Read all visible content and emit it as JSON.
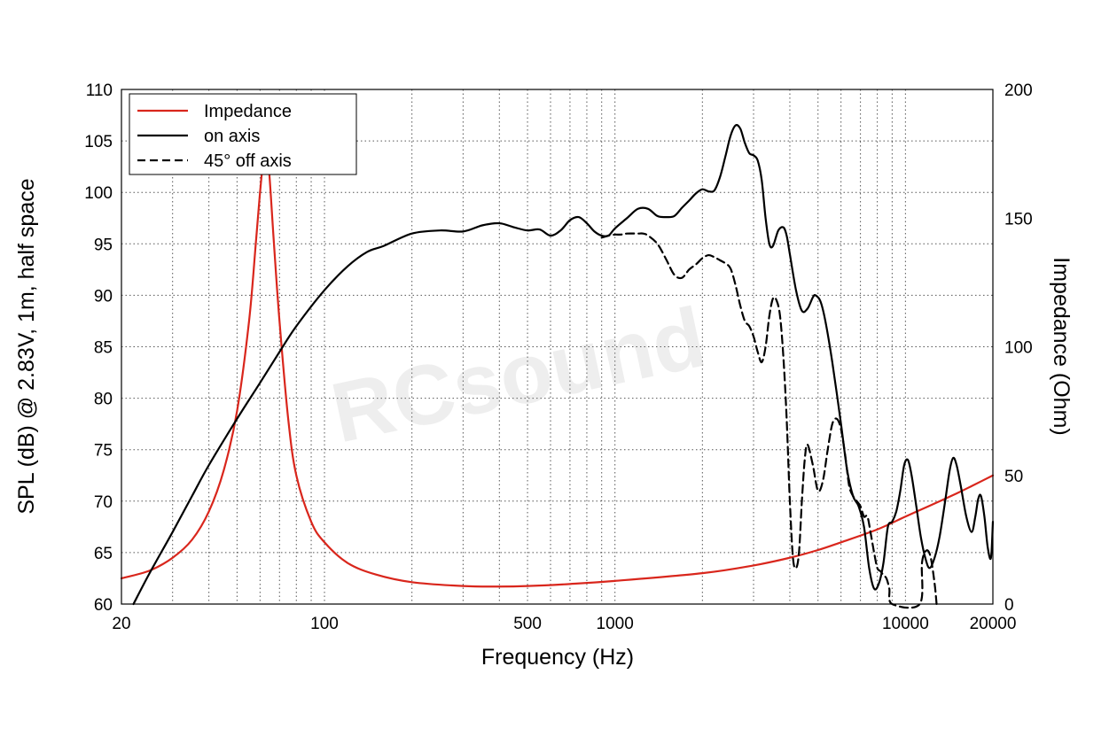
{
  "chart_data": {
    "type": "line",
    "title": "",
    "xlabel": "Frequency (Hz)",
    "ylabel": "SPL (dB) @ 2.83V, 1m, half space",
    "y2label": "Impedance (Ohm)",
    "x_scale": "log",
    "xlim": [
      20,
      20000
    ],
    "ylim": [
      60,
      110
    ],
    "y2lim": [
      0,
      200
    ],
    "grid": true,
    "legend_position": "top-left",
    "x_tick_labels": [
      "20",
      "100",
      "500",
      "1000",
      "10000",
      "20000"
    ],
    "x_tick_values": [
      20,
      100,
      500,
      1000,
      10000,
      20000
    ],
    "y_tick_labels": [
      "60",
      "65",
      "70",
      "75",
      "80",
      "85",
      "90",
      "95",
      "100",
      "105",
      "110"
    ],
    "y2_tick_labels": [
      "0",
      "50",
      "100",
      "150",
      "200"
    ],
    "watermark": "RCsound",
    "series": [
      {
        "name": "Impedance",
        "axis": "right",
        "color": "#d9261c",
        "dash": "solid",
        "points": [
          [
            20,
            10
          ],
          [
            25,
            13
          ],
          [
            30,
            18
          ],
          [
            35,
            25
          ],
          [
            40,
            36
          ],
          [
            45,
            52
          ],
          [
            50,
            75
          ],
          [
            55,
            110
          ],
          [
            58,
            140
          ],
          [
            60,
            160
          ],
          [
            62,
            176
          ],
          [
            63,
            177
          ],
          [
            64.5,
            168
          ],
          [
            67,
            140
          ],
          [
            70,
            110
          ],
          [
            75,
            72
          ],
          [
            80,
            50
          ],
          [
            90,
            32
          ],
          [
            100,
            24
          ],
          [
            120,
            16
          ],
          [
            150,
            11.5
          ],
          [
            200,
            8.5
          ],
          [
            300,
            7
          ],
          [
            400,
            6.8
          ],
          [
            500,
            7
          ],
          [
            700,
            7.8
          ],
          [
            1000,
            9
          ],
          [
            2000,
            12
          ],
          [
            3000,
            15
          ],
          [
            4000,
            18
          ],
          [
            5000,
            21
          ],
          [
            6000,
            24
          ],
          [
            8000,
            29
          ],
          [
            10000,
            34
          ],
          [
            12000,
            38
          ],
          [
            15000,
            43
          ],
          [
            17000,
            46
          ],
          [
            20000,
            50
          ]
        ]
      },
      {
        "name": "on axis",
        "axis": "left",
        "color": "#000000",
        "dash": "solid",
        "points": [
          [
            22,
            60
          ],
          [
            25,
            63
          ],
          [
            30,
            67
          ],
          [
            35,
            70.5
          ],
          [
            40,
            73.5
          ],
          [
            50,
            78
          ],
          [
            60,
            81.5
          ],
          [
            70,
            84.5
          ],
          [
            80,
            87
          ],
          [
            100,
            90.5
          ],
          [
            120,
            92.8
          ],
          [
            140,
            94.2
          ],
          [
            160,
            94.8
          ],
          [
            200,
            96
          ],
          [
            250,
            96.3
          ],
          [
            300,
            96.2
          ],
          [
            350,
            96.8
          ],
          [
            400,
            97
          ],
          [
            450,
            96.6
          ],
          [
            500,
            96.3
          ],
          [
            550,
            96.4
          ],
          [
            600,
            95.8
          ],
          [
            650,
            96.3
          ],
          [
            700,
            97.3
          ],
          [
            750,
            97.6
          ],
          [
            800,
            97
          ],
          [
            850,
            96.2
          ],
          [
            900,
            95.8
          ],
          [
            950,
            95.8
          ],
          [
            1000,
            96.5
          ],
          [
            1100,
            97.5
          ],
          [
            1200,
            98.4
          ],
          [
            1300,
            98.4
          ],
          [
            1400,
            97.7
          ],
          [
            1500,
            97.6
          ],
          [
            1600,
            97.7
          ],
          [
            1700,
            98.5
          ],
          [
            1800,
            99.2
          ],
          [
            1900,
            99.9
          ],
          [
            2000,
            100.3
          ],
          [
            2100,
            100.1
          ],
          [
            2200,
            100.2
          ],
          [
            2300,
            101.5
          ],
          [
            2400,
            103.5
          ],
          [
            2500,
            105.5
          ],
          [
            2600,
            106.5
          ],
          [
            2700,
            106.2
          ],
          [
            2800,
            104.8
          ],
          [
            2900,
            103.8
          ],
          [
            3000,
            103.6
          ],
          [
            3100,
            103.1
          ],
          [
            3200,
            101.2
          ],
          [
            3300,
            97.5
          ],
          [
            3400,
            95
          ],
          [
            3500,
            94.8
          ],
          [
            3650,
            96.3
          ],
          [
            3800,
            96.6
          ],
          [
            3900,
            95.8
          ],
          [
            4000,
            94
          ],
          [
            4200,
            90.5
          ],
          [
            4400,
            88.5
          ],
          [
            4600,
            88.7
          ],
          [
            4800,
            89.8
          ],
          [
            4900,
            90
          ],
          [
            5100,
            89.4
          ],
          [
            5300,
            87.5
          ],
          [
            5600,
            83.5
          ],
          [
            6000,
            77.5
          ],
          [
            6300,
            73
          ],
          [
            6600,
            70.5
          ],
          [
            6900,
            69.5
          ],
          [
            7200,
            67.5
          ],
          [
            7500,
            63.5
          ],
          [
            7800,
            61.5
          ],
          [
            8100,
            62
          ],
          [
            8400,
            64
          ],
          [
            8700,
            67.5
          ],
          [
            9000,
            68
          ],
          [
            9300,
            69
          ],
          [
            9600,
            71
          ],
          [
            9900,
            73.5
          ],
          [
            10200,
            74
          ],
          [
            10500,
            72.5
          ],
          [
            10900,
            69.5
          ],
          [
            11300,
            66.5
          ],
          [
            11700,
            64.5
          ],
          [
            12100,
            63.5
          ],
          [
            12600,
            64.5
          ],
          [
            13100,
            66.5
          ],
          [
            13700,
            70
          ],
          [
            14200,
            73
          ],
          [
            14600,
            74.2
          ],
          [
            15000,
            73.5
          ],
          [
            15500,
            71.5
          ],
          [
            16200,
            68.5
          ],
          [
            16900,
            67
          ],
          [
            17400,
            68.5
          ],
          [
            17800,
            70.2
          ],
          [
            18200,
            70.5
          ],
          [
            18700,
            68.5
          ],
          [
            19200,
            65.5
          ],
          [
            19700,
            64.5
          ],
          [
            20000,
            68
          ]
        ]
      },
      {
        "name": "45° off axis",
        "axis": "left",
        "color": "#000000",
        "dash": "dashed",
        "points": [
          [
            900,
            95.6
          ],
          [
            950,
            95.8
          ],
          [
            1000,
            95.9
          ],
          [
            1050,
            95.9
          ],
          [
            1100,
            96
          ],
          [
            1200,
            96
          ],
          [
            1250,
            96
          ],
          [
            1300,
            95.8
          ],
          [
            1400,
            95
          ],
          [
            1500,
            93.5
          ],
          [
            1600,
            92
          ],
          [
            1700,
            91.7
          ],
          [
            1800,
            92.5
          ],
          [
            1900,
            93
          ],
          [
            2000,
            93.6
          ],
          [
            2100,
            93.9
          ],
          [
            2200,
            93.7
          ],
          [
            2300,
            93.4
          ],
          [
            2400,
            93.1
          ],
          [
            2500,
            92.6
          ],
          [
            2600,
            91
          ],
          [
            2700,
            89
          ],
          [
            2800,
            87.5
          ],
          [
            2900,
            87
          ],
          [
            3000,
            86
          ],
          [
            3100,
            84.5
          ],
          [
            3200,
            83.5
          ],
          [
            3300,
            85
          ],
          [
            3400,
            88
          ],
          [
            3500,
            89.7
          ],
          [
            3600,
            89.5
          ],
          [
            3700,
            88
          ],
          [
            3800,
            84
          ],
          [
            3900,
            78
          ],
          [
            4000,
            70
          ],
          [
            4100,
            64.5
          ],
          [
            4200,
            63.5
          ],
          [
            4300,
            65
          ],
          [
            4400,
            70
          ],
          [
            4500,
            74
          ],
          [
            4600,
            75.5
          ],
          [
            4800,
            73.5
          ],
          [
            5000,
            71
          ],
          [
            5200,
            72
          ],
          [
            5400,
            75
          ],
          [
            5600,
            77.5
          ],
          [
            5800,
            78
          ],
          [
            6000,
            77
          ],
          [
            6200,
            74.5
          ],
          [
            6400,
            71.5
          ],
          [
            6600,
            70.5
          ],
          [
            6800,
            70
          ],
          [
            7000,
            69.5
          ],
          [
            7200,
            68.5
          ],
          [
            7400,
            68.5
          ],
          [
            7600,
            66.8
          ],
          [
            7800,
            65
          ],
          [
            8000,
            63.5
          ],
          [
            8200,
            63.2
          ],
          [
            8400,
            62.8
          ],
          [
            8600,
            62.5
          ],
          [
            8800,
            61.5
          ],
          [
            9000,
            60
          ],
          [
            11200,
            60
          ],
          [
            11400,
            64
          ],
          [
            11800,
            65.2
          ],
          [
            12200,
            64.6
          ],
          [
            12600,
            62
          ],
          [
            12800,
            60
          ]
        ]
      }
    ]
  }
}
